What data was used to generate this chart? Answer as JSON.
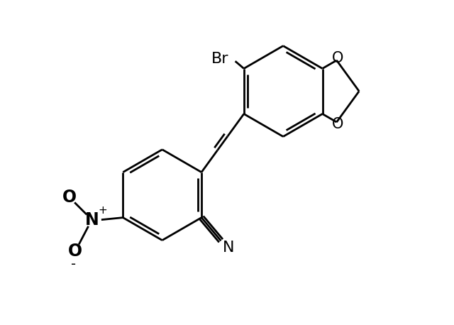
{
  "background_color": "#ffffff",
  "line_color": "#000000",
  "line_width": 2.0,
  "font_size_atom": 15,
  "font_size_br": 16,
  "figsize": [
    6.4,
    4.58
  ],
  "dpi": 100,
  "xlim": [
    0,
    10
  ],
  "ylim": [
    0,
    7.5
  ]
}
